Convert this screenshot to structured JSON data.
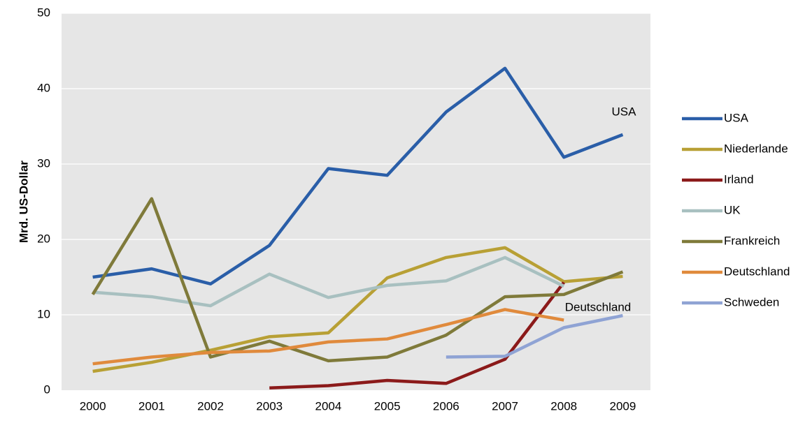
{
  "chart_data": {
    "type": "line",
    "y_label": "Mrd. US-Dollar",
    "categories": [
      "2000",
      "2001",
      "2002",
      "2003",
      "2004",
      "2005",
      "2006",
      "2007",
      "2008",
      "2009"
    ],
    "series": [
      {
        "name": "USA",
        "color": "#2a5ea8",
        "values": [
          15.0,
          16.1,
          14.1,
          19.2,
          29.4,
          28.5,
          36.9,
          42.7,
          30.9,
          33.9
        ]
      },
      {
        "name": "Niederlande",
        "color": "#b8a035",
        "values": [
          2.5,
          3.7,
          5.3,
          7.1,
          7.6,
          14.9,
          17.6,
          18.9,
          14.4,
          15.1
        ]
      },
      {
        "name": "Irland",
        "color": "#8b1a1a",
        "values": [
          null,
          null,
          null,
          0.3,
          0.6,
          1.3,
          0.9,
          4.1,
          14.3,
          null
        ]
      },
      {
        "name": "UK",
        "color": "#a8c0c0",
        "values": [
          13.0,
          12.4,
          11.2,
          15.4,
          12.3,
          13.9,
          14.5,
          17.6,
          13.8,
          null
        ]
      },
      {
        "name": "Frankreich",
        "color": "#7f7a3a",
        "values": [
          12.7,
          25.4,
          4.4,
          6.5,
          3.9,
          4.4,
          7.3,
          12.4,
          12.7,
          15.7
        ]
      },
      {
        "name": "Deutschland",
        "color": "#e08a3c",
        "values": [
          3.5,
          4.4,
          5.0,
          5.2,
          6.4,
          6.8,
          8.7,
          10.7,
          9.3,
          null
        ]
      },
      {
        "name": "Schweden",
        "color": "#8fa3d4",
        "values": [
          null,
          null,
          null,
          null,
          null,
          null,
          4.4,
          4.5,
          8.3,
          9.9
        ]
      }
    ],
    "annotations": [
      "USA",
      "Deutschland"
    ],
    "ylim": [
      0,
      50
    ],
    "yticks": [
      0,
      10,
      20,
      30,
      40,
      50
    ],
    "grid": true,
    "legend": "right"
  }
}
